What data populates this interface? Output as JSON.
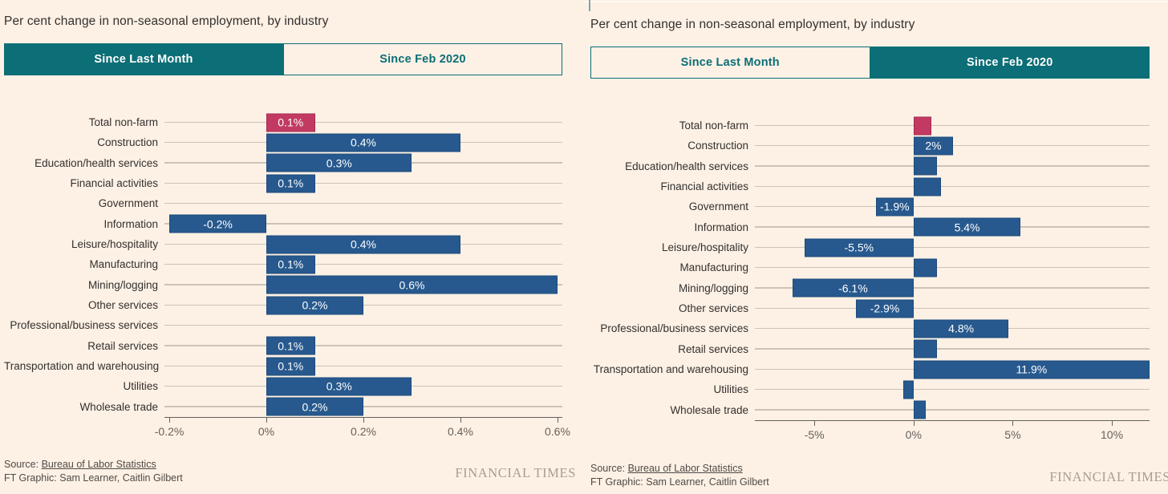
{
  "colors": {
    "background": "#fdf1e5",
    "accent_teal": "#0c6e76",
    "tab_active_text": "#ffffff",
    "bar_blue": "#27598e",
    "bar_blue_border": "#1c4a7c",
    "bar_pink": "#c23a62",
    "bar_pink_border": "#a02950",
    "grid_line": "#ccc2b6",
    "axis_line": "#66605c",
    "axis_text": "#66605c",
    "text_dark": "#33302e",
    "text_muted": "#4f4a46",
    "wordmark_gray": "#a69d90",
    "panel_divider": "#7fa3a8"
  },
  "panels": [
    {
      "title": "Per cent change in non-seasonal employment, by industry",
      "tabs": [
        {
          "label": "Since Last Month",
          "active": true
        },
        {
          "label": "Since Feb 2020",
          "active": false
        }
      ],
      "chart_index": 0,
      "source_prefix": "Source: ",
      "source_link": "Bureau of Labor Statistics",
      "credit": "FT Graphic: Sam Learner, Caitlin Gilbert",
      "wordmark": "FINANCIAL TIMES"
    },
    {
      "title": "Per cent change in non-seasonal employment, by industry",
      "tabs": [
        {
          "label": "Since Last Month",
          "active": false
        },
        {
          "label": "Since Feb 2020",
          "active": true
        }
      ],
      "chart_index": 1,
      "source_prefix": "Source: ",
      "source_link": "Bureau of Labor Statistics",
      "credit": "FT Graphic: Sam Learner, Caitlin Gilbert",
      "wordmark": "FINANCIAL TIMES"
    }
  ],
  "chart_data": [
    {
      "type": "bar",
      "orientation": "horizontal",
      "title": "Per cent change in non-seasonal employment, by industry",
      "series_name": "Since Last Month",
      "unit": "%",
      "grid": "row-lines",
      "legend": "none",
      "categories": [
        "Total non-farm",
        "Construction",
        "Education/health services",
        "Financial activities",
        "Government",
        "Information",
        "Leisure/hospitality",
        "Manufacturing",
        "Mining/logging",
        "Other services",
        "Professional/business services",
        "Retail services",
        "Transportation and warehousing",
        "Utilities",
        "Wholesale trade"
      ],
      "values": [
        0.1,
        0.4,
        0.3,
        0.1,
        0,
        -0.2,
        0.4,
        0.1,
        0.6,
        0.2,
        0,
        0.1,
        0.1,
        0.3,
        0.2
      ],
      "bar_labels": [
        "0.1%",
        "0.4%",
        "0.3%",
        "0.1%",
        null,
        "-0.2%",
        "0.4%",
        "0.1%",
        "0.6%",
        "0.2%",
        null,
        "0.1%",
        "0.1%",
        "0.3%",
        "0.2%"
      ],
      "highlight_index": 0,
      "xlim": [
        -0.21,
        0.61
      ],
      "ticks": [
        {
          "value": -0.2,
          "label": "-0.2%"
        },
        {
          "value": 0,
          "label": "0%"
        },
        {
          "value": 0.2,
          "label": "0.2%"
        },
        {
          "value": 0.4,
          "label": "0.4%"
        },
        {
          "value": 0.6,
          "label": "0.6%"
        }
      ]
    },
    {
      "type": "bar",
      "orientation": "horizontal",
      "title": "Per cent change in non-seasonal employment, by industry",
      "series_name": "Since Feb 2020",
      "unit": "%",
      "grid": "row-lines",
      "legend": "none",
      "categories": [
        "Total non-farm",
        "Construction",
        "Education/health services",
        "Financial activities",
        "Government",
        "Information",
        "Leisure/hospitality",
        "Manufacturing",
        "Mining/logging",
        "Other services",
        "Professional/business services",
        "Retail services",
        "Transportation and warehousing",
        "Utilities",
        "Wholesale trade"
      ],
      "values": [
        0.9,
        2,
        1.2,
        1.4,
        -1.9,
        5.4,
        -5.5,
        1.2,
        -6.1,
        -2.9,
        4.8,
        1.2,
        11.9,
        -0.5,
        0.6
      ],
      "bar_labels": [
        null,
        "2%",
        null,
        null,
        "-1.9%",
        "5.4%",
        "-5.5%",
        null,
        "-6.1%",
        "-2.9%",
        "4.8%",
        null,
        "11.9%",
        null,
        null
      ],
      "highlight_index": 0,
      "xlim": [
        -8.0,
        11.9
      ],
      "ticks": [
        {
          "value": -5,
          "label": "-5%"
        },
        {
          "value": 0,
          "label": "0%"
        },
        {
          "value": 5,
          "label": "5%"
        },
        {
          "value": 10,
          "label": "10%"
        }
      ]
    }
  ]
}
